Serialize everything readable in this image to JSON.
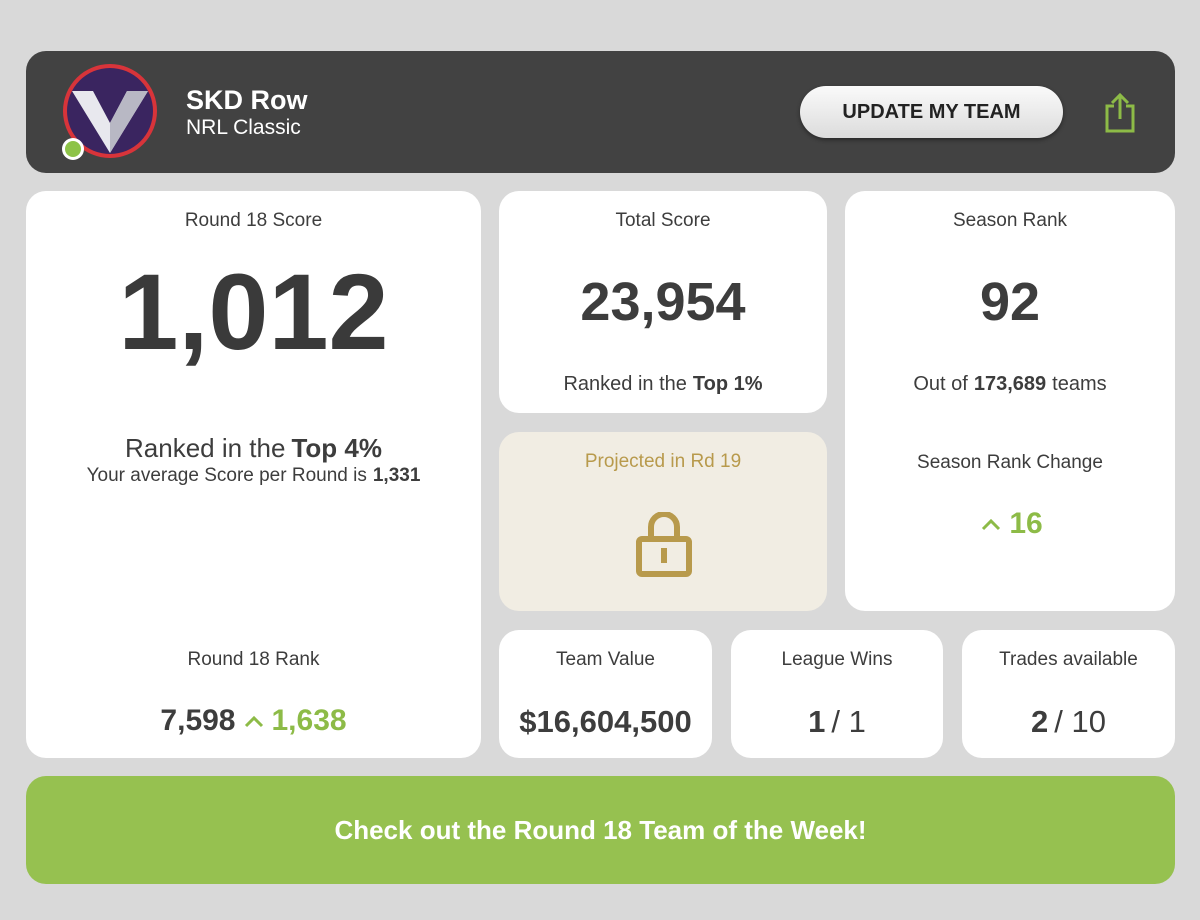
{
  "header": {
    "team_name": "SKD Row",
    "competition": "NRL Classic",
    "button": "UPDATE MY TEAM"
  },
  "round_score": {
    "label": "Round 18 Score",
    "value": "1,012",
    "rank_prefix": "Ranked in the",
    "rank_highlight": "Top 4%",
    "average_prefix": "Your average Score per Round is",
    "average_value": "1,331",
    "rank_label": "Round 18 Rank",
    "rank_value": "7,598",
    "rank_change": "1,638"
  },
  "total_score": {
    "label": "Total Score",
    "value": "23,954",
    "rank_prefix": "Ranked in the",
    "rank_highlight": "Top 1%"
  },
  "season_rank": {
    "label": "Season Rank",
    "value": "92",
    "out_of_prefix": "Out of",
    "out_of_value": "173,689",
    "out_of_suffix": "teams",
    "change_label": "Season Rank Change",
    "change_value": "16"
  },
  "projected": {
    "label": "Projected in Rd 19"
  },
  "team_value": {
    "label": "Team Value",
    "value": "$16,604,500"
  },
  "league_wins": {
    "label": "League Wins",
    "value": "1",
    "rest": "/ 1"
  },
  "trades": {
    "label": "Trades available",
    "value": "2",
    "rest": "/ 10"
  },
  "banner": {
    "text": "Check out the Round 18 Team of the Week!"
  }
}
